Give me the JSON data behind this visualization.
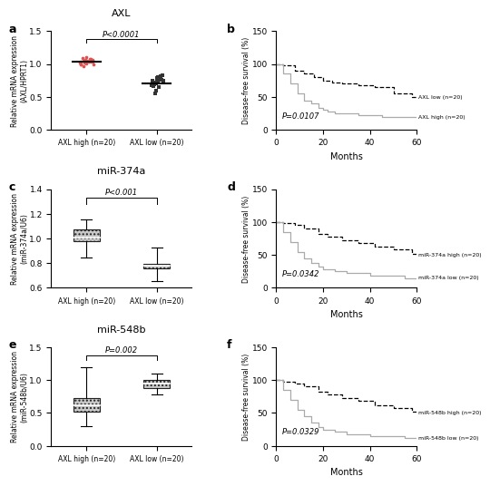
{
  "panel_a": {
    "title": "AXL",
    "ylabel": "Relative mRNA expression\n(AXL/HPRT1)",
    "xlabel_high": "AXL high (n=20)",
    "xlabel_low": "AXL low (n=20)",
    "pvalue": "P<0.0001",
    "ylim": [
      0.0,
      1.5
    ],
    "yticks": [
      0.0,
      0.5,
      1.0,
      1.5
    ],
    "high_mean": 1.04,
    "low_mean": 0.7,
    "high_dots": [
      1.0,
      1.03,
      1.06,
      1.08,
      0.99,
      1.05,
      1.1,
      1.03,
      0.97,
      1.01,
      1.04,
      1.07,
      1.02,
      1.0,
      1.05,
      1.03,
      1.09,
      1.02,
      1.06,
      1.02
    ],
    "low_dots": [
      0.8,
      0.75,
      0.72,
      0.78,
      0.83,
      0.68,
      0.73,
      0.77,
      0.65,
      0.7,
      0.74,
      0.79,
      0.71,
      0.6,
      0.55,
      0.76,
      0.81,
      0.69,
      0.74,
      0.67
    ],
    "high_color": "#e05050",
    "low_color": "#333333"
  },
  "panel_b": {
    "ylabel": "Disease-free survival (%)",
    "xlabel": "Months",
    "pvalue": "P=0.0107",
    "ylim": [
      0,
      150
    ],
    "yticks": [
      0,
      50,
      100,
      150
    ],
    "xlim": [
      0,
      60
    ],
    "xticks": [
      0,
      20,
      40,
      60
    ],
    "low_label": "AXL low (n=20)",
    "high_label": "AXL high (n=20)",
    "axl_low_times": [
      0,
      3,
      8,
      12,
      16,
      20,
      24,
      28,
      35,
      42,
      50,
      58,
      60
    ],
    "axl_low_surv": [
      100,
      98,
      90,
      85,
      80,
      75,
      72,
      70,
      68,
      65,
      55,
      50,
      50
    ],
    "axl_high_times": [
      0,
      3,
      6,
      9,
      12,
      15,
      18,
      20,
      22,
      25,
      35,
      45,
      60
    ],
    "axl_high_surv": [
      100,
      85,
      70,
      55,
      45,
      40,
      33,
      30,
      28,
      25,
      22,
      20,
      20
    ]
  },
  "panel_c": {
    "title": "miR-374a",
    "ylabel": "Relative mRNA expression\n(miR-374a/U6)",
    "xlabel_high": "AXL high (n=20)",
    "xlabel_low": "AXL low (n=20)",
    "pvalue": "P<0.001",
    "ylim": [
      0.6,
      1.4
    ],
    "yticks": [
      0.6,
      0.8,
      1.0,
      1.2,
      1.4
    ],
    "high_q1": 0.975,
    "high_median": 1.005,
    "high_q3": 1.075,
    "high_whislo": 0.845,
    "high_whishi": 1.155,
    "low_q1": 0.755,
    "low_median": 0.78,
    "low_q3": 0.795,
    "low_whislo": 0.655,
    "low_whishi": 0.925
  },
  "panel_d": {
    "ylabel": "Disease-free survival (%)",
    "xlabel": "Months",
    "pvalue": "P=0.0342",
    "ylim": [
      0,
      150
    ],
    "yticks": [
      0,
      50,
      100,
      150
    ],
    "xlim": [
      0,
      60
    ],
    "xticks": [
      0,
      20,
      40,
      60
    ],
    "low_label": "miR-374a low (n=20)",
    "high_label": "miR-374a high (n=20)",
    "high_times": [
      0,
      3,
      8,
      12,
      18,
      22,
      28,
      35,
      42,
      50,
      58,
      60
    ],
    "high_surv": [
      100,
      98,
      95,
      90,
      82,
      78,
      72,
      68,
      62,
      58,
      52,
      50
    ],
    "low_times": [
      0,
      3,
      6,
      9,
      12,
      15,
      18,
      20,
      25,
      30,
      40,
      55,
      60
    ],
    "low_surv": [
      100,
      85,
      70,
      55,
      45,
      38,
      32,
      28,
      25,
      22,
      18,
      15,
      15
    ]
  },
  "panel_e": {
    "title": "miR-548b",
    "ylabel": "Relative mRNA expression\n(miR-548b/U6)",
    "xlabel_high": "AXL high (n=20)",
    "xlabel_low": "AXL low (n=20)",
    "pvalue": "P=0.002",
    "ylim": [
      0.0,
      1.5
    ],
    "yticks": [
      0.0,
      0.5,
      1.0,
      1.5
    ],
    "high_q1": 0.52,
    "high_median": 0.62,
    "high_q3": 0.72,
    "high_whislo": 0.3,
    "high_whishi": 1.2,
    "low_q1": 0.88,
    "low_median": 0.94,
    "low_q3": 1.0,
    "low_whislo": 0.78,
    "low_whishi": 1.1
  },
  "panel_f": {
    "ylabel": "Disease-free survival (%)",
    "xlabel": "Months",
    "pvalue": "P=0.0329",
    "ylim": [
      0,
      150
    ],
    "yticks": [
      0,
      50,
      100,
      150
    ],
    "xlim": [
      0,
      60
    ],
    "xticks": [
      0,
      20,
      40,
      60
    ],
    "high_label": "miR-548b high (n=20)",
    "low_label": "miR-548b low (n=20)",
    "high_times": [
      0,
      3,
      8,
      12,
      18,
      22,
      28,
      35,
      42,
      50,
      58,
      60
    ],
    "high_surv": [
      100,
      98,
      95,
      90,
      82,
      78,
      72,
      68,
      62,
      58,
      52,
      50
    ],
    "low_times": [
      0,
      3,
      6,
      9,
      12,
      15,
      18,
      20,
      25,
      30,
      40,
      55,
      60
    ],
    "low_surv": [
      100,
      85,
      70,
      55,
      45,
      35,
      28,
      25,
      22,
      18,
      15,
      12,
      12
    ]
  },
  "box_hatch": "....",
  "box_facecolor": "#c8c8c8",
  "box_edgecolor": "#222222"
}
